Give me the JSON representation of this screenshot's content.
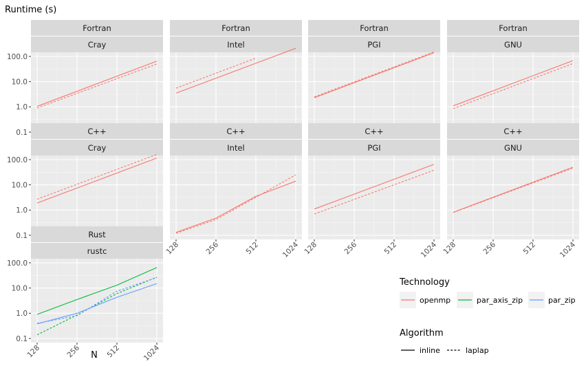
{
  "chart_data": {
    "type": "line",
    "title": "",
    "ylabel": "Runtime (s)",
    "xlabel": "N",
    "x_scale": "log2",
    "y_scale": "log10",
    "x_ticks": [
      128,
      256,
      512,
      1024
    ],
    "x_tick_labels": [
      "128",
      "256",
      "512",
      "1024"
    ],
    "y_ticks": [
      0.1,
      1,
      10,
      100
    ],
    "y_tick_labels": [
      "0.1",
      "1.0",
      "10.0",
      "100.0"
    ],
    "xlim": [
      128,
      1024
    ],
    "ylim": [
      0.1,
      100
    ],
    "colors": {
      "openmp": "#F8766D",
      "par_axis_zip": "#00BA38",
      "par_zip": "#619CFF"
    },
    "legend": {
      "technology_title": "Technology",
      "technology": [
        "openmp",
        "par_axis_zip",
        "par_zip"
      ],
      "algorithm_title": "Algorithm",
      "algorithm": [
        "inline",
        "laplap"
      ]
    },
    "panels": [
      {
        "lang": "Fortran",
        "compiler": "Cray",
        "series": [
          {
            "technology": "openmp",
            "algorithm": "inline",
            "x": [
              128,
              1024
            ],
            "y": [
              1.05,
              65
            ]
          },
          {
            "technology": "openmp",
            "algorithm": "laplap",
            "x": [
              128,
              1024
            ],
            "y": [
              0.9,
              50
            ]
          }
        ]
      },
      {
        "lang": "Fortran",
        "compiler": "Intel",
        "series": [
          {
            "technology": "openmp",
            "algorithm": "inline",
            "x": [
              128,
              1024
            ],
            "y": [
              3.5,
              210
            ]
          },
          {
            "technology": "openmp",
            "algorithm": "laplap",
            "x": [
              128,
              512
            ],
            "y": [
              5.5,
              85
            ]
          }
        ]
      },
      {
        "lang": "Fortran",
        "compiler": "PGI",
        "series": [
          {
            "technology": "openmp",
            "algorithm": "inline",
            "x": [
              128,
              1024
            ],
            "y": [
              2.3,
              140
            ]
          },
          {
            "technology": "openmp",
            "algorithm": "laplap",
            "x": [
              128,
              1024
            ],
            "y": [
              2.5,
              150
            ]
          }
        ]
      },
      {
        "lang": "Fortran",
        "compiler": "GNU",
        "series": [
          {
            "technology": "openmp",
            "algorithm": "inline",
            "x": [
              128,
              1024
            ],
            "y": [
              1.1,
              68
            ]
          },
          {
            "technology": "openmp",
            "algorithm": "laplap",
            "x": [
              128,
              1024
            ],
            "y": [
              0.85,
              52
            ]
          }
        ]
      },
      {
        "lang": "C++",
        "compiler": "Cray",
        "series": [
          {
            "technology": "openmp",
            "algorithm": "inline",
            "x": [
              128,
              1024
            ],
            "y": [
              1.9,
              115
            ]
          },
          {
            "technology": "openmp",
            "algorithm": "laplap",
            "x": [
              128,
              1024
            ],
            "y": [
              2.7,
              160
            ]
          }
        ]
      },
      {
        "lang": "C++",
        "compiler": "Intel",
        "series": [
          {
            "technology": "openmp",
            "algorithm": "inline",
            "x": [
              128,
              256,
              512,
              1024
            ],
            "y": [
              0.13,
              0.48,
              3.5,
              14
            ]
          },
          {
            "technology": "openmp",
            "algorithm": "laplap",
            "x": [
              128,
              256,
              512,
              1024
            ],
            "y": [
              0.12,
              0.42,
              3.2,
              25
            ]
          }
        ]
      },
      {
        "lang": "C++",
        "compiler": "PGI",
        "series": [
          {
            "technology": "openmp",
            "algorithm": "inline",
            "x": [
              128,
              1024
            ],
            "y": [
              1.1,
              65
            ]
          },
          {
            "technology": "openmp",
            "algorithm": "laplap",
            "x": [
              128,
              1024
            ],
            "y": [
              0.7,
              38
            ]
          }
        ]
      },
      {
        "lang": "C++",
        "compiler": "GNU",
        "series": [
          {
            "technology": "openmp",
            "algorithm": "inline",
            "x": [
              128,
              1024
            ],
            "y": [
              0.82,
              50
            ]
          },
          {
            "technology": "openmp",
            "algorithm": "laplap",
            "x": [
              128,
              1024
            ],
            "y": [
              0.8,
              46
            ]
          }
        ]
      },
      {
        "lang": "Rust",
        "compiler": "rustc",
        "series": [
          {
            "technology": "par_axis_zip",
            "algorithm": "inline",
            "x": [
              128,
              256,
              512,
              1024
            ],
            "y": [
              0.9,
              3.5,
              13,
              65
            ]
          },
          {
            "technology": "par_axis_zip",
            "algorithm": "laplap",
            "x": [
              128,
              256,
              512,
              1024
            ],
            "y": [
              0.14,
              0.85,
              6,
              27
            ]
          },
          {
            "technology": "par_zip",
            "algorithm": "inline",
            "x": [
              128,
              256,
              512,
              1024
            ],
            "y": [
              0.38,
              1.0,
              4.3,
              15
            ]
          },
          {
            "technology": "par_zip",
            "algorithm": "laplap",
            "x": [
              128,
              256,
              512,
              1024
            ],
            "y": [
              0.4,
              0.8,
              7.5,
              26
            ]
          }
        ]
      }
    ]
  }
}
